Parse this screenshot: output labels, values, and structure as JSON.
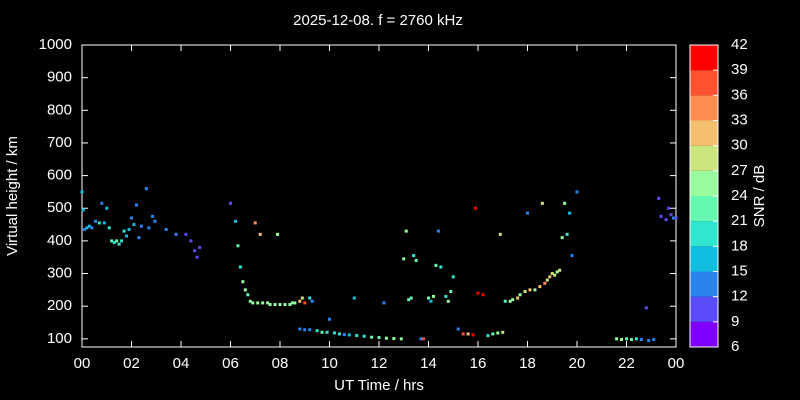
{
  "chart_data": {
    "type": "scatter",
    "title": "2025-12-08. f = 2760 kHz",
    "xlabel": "UT Time / hrs",
    "ylabel": "Virtual height / km",
    "xlim": [
      0,
      24
    ],
    "ylim": [
      75,
      1000
    ],
    "xticks": [
      {
        "value": 0,
        "label": "00"
      },
      {
        "value": 2,
        "label": "02"
      },
      {
        "value": 4,
        "label": "04"
      },
      {
        "value": 6,
        "label": "06"
      },
      {
        "value": 8,
        "label": "08"
      },
      10,
      12,
      14,
      16,
      18,
      20,
      22,
      {
        "value": 24,
        "label": "00"
      }
    ],
    "yticks": [
      100,
      200,
      300,
      400,
      500,
      600,
      700,
      800,
      900,
      1000
    ],
    "colorbar": {
      "label": "SNR / dB",
      "lim": [
        6,
        42
      ],
      "ticks": [
        6,
        9,
        12,
        15,
        18,
        21,
        24,
        27,
        30,
        33,
        36,
        39,
        42
      ],
      "colors": [
        "#8000ff",
        "#5a4cf8",
        "#2a84f0",
        "#10bfe0",
        "#30e6d0",
        "#66f8b0",
        "#99fda0",
        "#cce67f",
        "#f4c070",
        "#ff8c50",
        "#ff5030",
        "#ff0000"
      ]
    },
    "x": [
      0.0,
      0.05,
      0.1,
      0.2,
      0.3,
      0.4,
      0.55,
      0.7,
      0.8,
      0.9,
      1.0,
      1.1,
      1.2,
      1.3,
      1.4,
      1.5,
      1.6,
      1.7,
      1.8,
      1.9,
      2.0,
      2.1,
      2.2,
      2.3,
      2.4,
      2.6,
      2.7,
      2.85,
      2.95,
      3.4,
      3.8,
      4.2,
      4.4,
      4.55,
      4.65,
      4.75,
      6.0,
      6.2,
      6.3,
      6.4,
      6.5,
      6.6,
      6.7,
      6.8,
      6.9,
      7.0,
      7.1,
      7.3,
      7.2,
      7.5,
      7.6,
      7.8,
      7.9,
      8.0,
      8.2,
      8.4,
      8.5,
      8.6,
      8.8,
      8.9,
      9.0,
      9.2,
      9.3,
      8.8,
      9.0,
      9.2,
      9.5,
      9.7,
      9.9,
      10.0,
      10.2,
      10.4,
      10.6,
      10.8,
      11.0,
      11.1,
      11.4,
      11.7,
      12.0,
      12.2,
      12.3,
      12.6,
      12.9,
      13.0,
      13.1,
      13.2,
      13.3,
      13.4,
      13.5,
      13.7,
      13.8,
      14.0,
      14.1,
      14.2,
      14.3,
      14.4,
      14.5,
      14.7,
      14.8,
      14.9,
      15.0,
      15.2,
      15.4,
      15.6,
      15.8,
      15.9,
      16.0,
      16.2,
      16.4,
      16.6,
      16.8,
      17.0,
      16.9,
      17.1,
      17.3,
      17.4,
      17.6,
      17.7,
      17.9,
      18.0,
      18.1,
      18.3,
      18.5,
      18.6,
      18.7,
      18.8,
      18.9,
      19.0,
      19.1,
      19.2,
      19.3,
      19.4,
      19.5,
      19.6,
      19.7,
      19.8,
      20.0,
      21.6,
      21.8,
      22.0,
      22.2,
      22.4,
      22.6,
      22.8,
      22.9,
      23.1,
      23.3,
      23.4,
      23.6,
      23.7,
      23.8,
      23.9,
      24.0
    ],
    "y": [
      550,
      495,
      435,
      440,
      445,
      440,
      460,
      455,
      515,
      455,
      500,
      440,
      400,
      395,
      400,
      390,
      400,
      430,
      415,
      435,
      470,
      450,
      510,
      410,
      445,
      560,
      440,
      475,
      460,
      435,
      420,
      420,
      400,
      370,
      350,
      380,
      515,
      460,
      385,
      320,
      275,
      250,
      235,
      215,
      210,
      455,
      210,
      210,
      420,
      210,
      205,
      205,
      420,
      205,
      205,
      205,
      210,
      210,
      215,
      225,
      210,
      225,
      215,
      130,
      128,
      128,
      125,
      120,
      120,
      160,
      118,
      115,
      113,
      112,
      225,
      110,
      108,
      105,
      104,
      210,
      102,
      101,
      100,
      345,
      430,
      220,
      225,
      355,
      340,
      100,
      100,
      225,
      215,
      230,
      325,
      430,
      320,
      230,
      215,
      245,
      290,
      130,
      115,
      115,
      112,
      500,
      240,
      235,
      110,
      115,
      118,
      120,
      420,
      215,
      215,
      220,
      225,
      235,
      245,
      485,
      250,
      250,
      260,
      515,
      270,
      280,
      290,
      300,
      295,
      305,
      310,
      410,
      515,
      420,
      485,
      355,
      550,
      100,
      98,
      100,
      98,
      100,
      98,
      195,
      95,
      98,
      530,
      475,
      465,
      500,
      480,
      470,
      470
    ],
    "snr": [
      16,
      16,
      14,
      16,
      16,
      14,
      14,
      20,
      14,
      16,
      16,
      18,
      22,
      20,
      22,
      20,
      20,
      20,
      16,
      16,
      14,
      16,
      13,
      13,
      13,
      13,
      13,
      13,
      13,
      13,
      12,
      11,
      11,
      11,
      11,
      11,
      11,
      16,
      22,
      18,
      24,
      24,
      22,
      24,
      24,
      35,
      26,
      26,
      31,
      26,
      26,
      26,
      24,
      24,
      24,
      24,
      24,
      24,
      30,
      27,
      37,
      18,
      14,
      14,
      14,
      14,
      18,
      22,
      18,
      14,
      20,
      18,
      14,
      16,
      16,
      18,
      20,
      22,
      22,
      13,
      24,
      24,
      26,
      24,
      24,
      22,
      22,
      20,
      22,
      14,
      36,
      22,
      16,
      26,
      22,
      14,
      18,
      18,
      24,
      22,
      20,
      14,
      36,
      30,
      39,
      39,
      39,
      39,
      18,
      22,
      24,
      28,
      28,
      22,
      26,
      26,
      30,
      24,
      28,
      14,
      30,
      24,
      32,
      28,
      33,
      27,
      30,
      27,
      28,
      24,
      27,
      24,
      24,
      20,
      16,
      13,
      13,
      24,
      24,
      22,
      22,
      18,
      13,
      11,
      13,
      14,
      11,
      11,
      11,
      11,
      11,
      14,
      11
    ]
  }
}
